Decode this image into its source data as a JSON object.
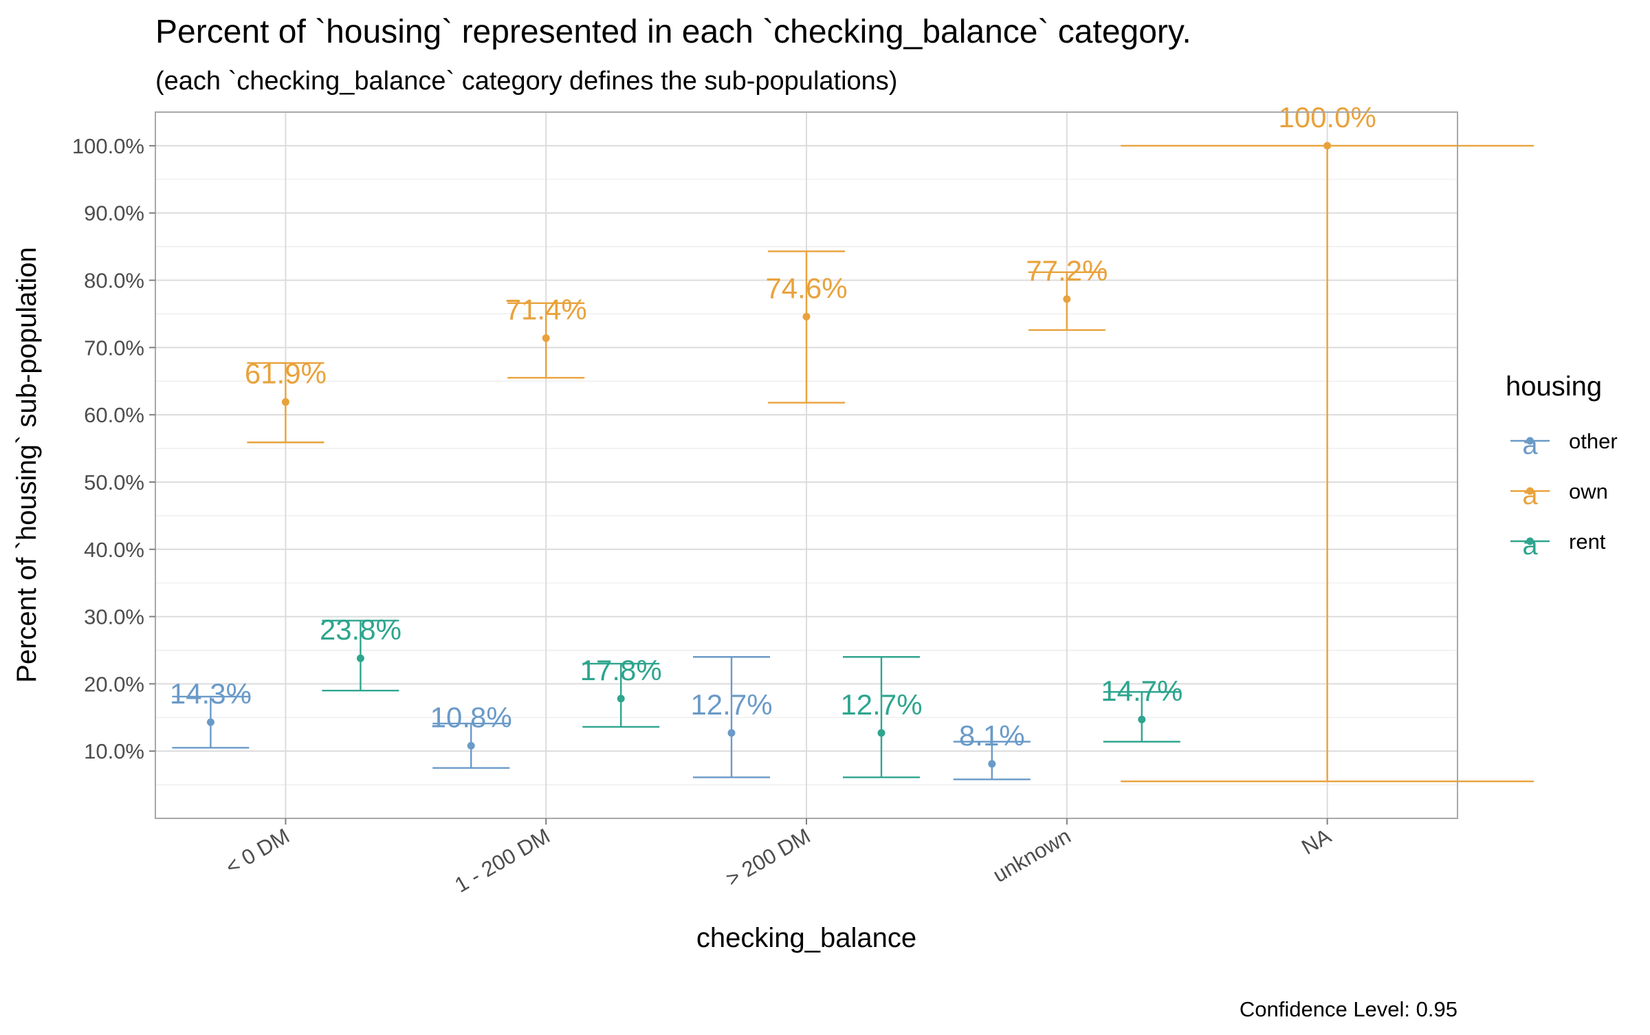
{
  "chart_data": {
    "type": "errorbar",
    "title": "Percent of `housing` represented in each `checking_balance` category.",
    "subtitle": "(each `checking_balance` category defines the sub-populations)",
    "xlabel": "checking_balance",
    "ylabel": "Percent of `housing` sub-population",
    "caption": "Confidence Level: 0.95",
    "categories": [
      "< 0 DM",
      "1 - 200 DM",
      "> 200 DM",
      "unknown",
      "NA"
    ],
    "ylim": [
      0.0,
      1.05
    ],
    "yticks": [
      0.1,
      0.2,
      0.3,
      0.4,
      0.5,
      0.6,
      0.7,
      0.8,
      0.9,
      1.0
    ],
    "ytick_labels": [
      "10.0%",
      "20.0%",
      "30.0%",
      "40.0%",
      "50.0%",
      "60.0%",
      "70.0%",
      "80.0%",
      "90.0%",
      "100.0%"
    ],
    "grid": true,
    "legend": {
      "title": "housing",
      "placement": "right",
      "entries": [
        "other",
        "own",
        "rent"
      ]
    },
    "colors": {
      "other": "#6A9AC8",
      "own": "#E9A23B",
      "rent": "#2EA58E",
      "grid": "#DCDCDC",
      "panel_border": "#A8A8A8",
      "axis_text": "#4D4D4D"
    },
    "series": [
      {
        "name": "other",
        "points": [
          {
            "category": "< 0 DM",
            "value": 0.143,
            "lower": 0.105,
            "upper": 0.181,
            "label": "14.3%"
          },
          {
            "category": "1 - 200 DM",
            "value": 0.108,
            "lower": 0.075,
            "upper": 0.141,
            "label": "10.8%"
          },
          {
            "category": "> 200 DM",
            "value": 0.127,
            "lower": 0.061,
            "upper": 0.24,
            "label": "12.7%"
          },
          {
            "category": "unknown",
            "value": 0.081,
            "lower": 0.058,
            "upper": 0.114,
            "label": "8.1%"
          }
        ]
      },
      {
        "name": "own",
        "points": [
          {
            "category": "< 0 DM",
            "value": 0.619,
            "lower": 0.559,
            "upper": 0.677,
            "label": "61.9%"
          },
          {
            "category": "1 - 200 DM",
            "value": 0.714,
            "lower": 0.655,
            "upper": 0.766,
            "label": "71.4%"
          },
          {
            "category": "> 200 DM",
            "value": 0.746,
            "lower": 0.618,
            "upper": 0.843,
            "label": "74.6%"
          },
          {
            "category": "unknown",
            "value": 0.772,
            "lower": 0.726,
            "upper": 0.812,
            "label": "77.2%"
          },
          {
            "category": "NA",
            "value": 1.0,
            "lower": 0.055,
            "upper": 1.0,
            "label": "100.0%"
          }
        ]
      },
      {
        "name": "rent",
        "points": [
          {
            "category": "< 0 DM",
            "value": 0.238,
            "lower": 0.19,
            "upper": 0.294,
            "label": "23.8%"
          },
          {
            "category": "1 - 200 DM",
            "value": 0.178,
            "lower": 0.136,
            "upper": 0.23,
            "label": "17.8%"
          },
          {
            "category": "> 200 DM",
            "value": 0.127,
            "lower": 0.061,
            "upper": 0.24,
            "label": "12.7%"
          },
          {
            "category": "unknown",
            "value": 0.147,
            "lower": 0.114,
            "upper": 0.188,
            "label": "14.7%"
          }
        ]
      }
    ]
  }
}
